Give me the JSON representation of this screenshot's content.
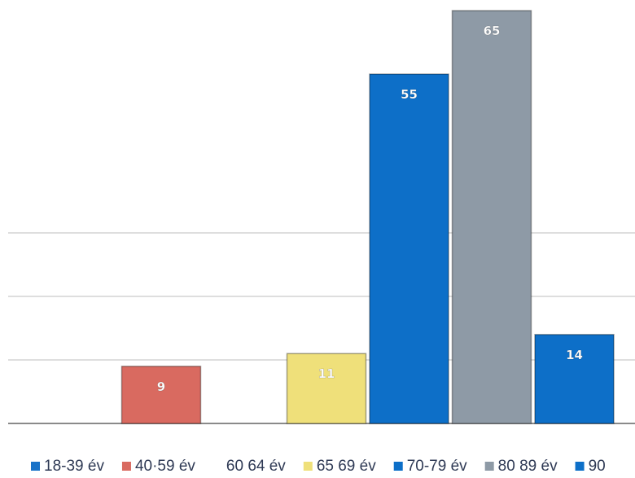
{
  "chart_data": {
    "type": "bar",
    "categories": [
      "18-39 év",
      "40-59 év",
      "60 64 év",
      "65 69 év",
      "70-79 év",
      "80 89 év",
      "90"
    ],
    "values": [
      0,
      9,
      0,
      11,
      55,
      65,
      14
    ],
    "data_labels": [
      "",
      "9",
      "",
      "11",
      "55",
      "65",
      "14"
    ],
    "colors": [
      "#1a73c8",
      "#d96a60",
      "#ffffff",
      "#efe07a",
      "#0d6fc8",
      "#8e9aa6",
      "#0d6fc8"
    ],
    "legend": [
      {
        "label": "18-39 év",
        "color": "#1a73c8"
      },
      {
        "label": "40·59 év",
        "color": "#d96a60"
      },
      {
        "label": "60 64 év",
        "color": "#ffffff"
      },
      {
        "label": "65 69 év",
        "color": "#efe07a"
      },
      {
        "label": "70-79 év",
        "color": "#0d6fc8"
      },
      {
        "label": "80 89 év",
        "color": "#8e9aa6"
      },
      {
        "label": "90",
        "color": "#0d6fc8"
      }
    ],
    "legend_position": "bottom",
    "ylim": [
      0,
      70
    ],
    "gridlines": [
      0,
      10,
      20,
      30
    ],
    "title": "",
    "xlabel": "",
    "ylabel": ""
  }
}
